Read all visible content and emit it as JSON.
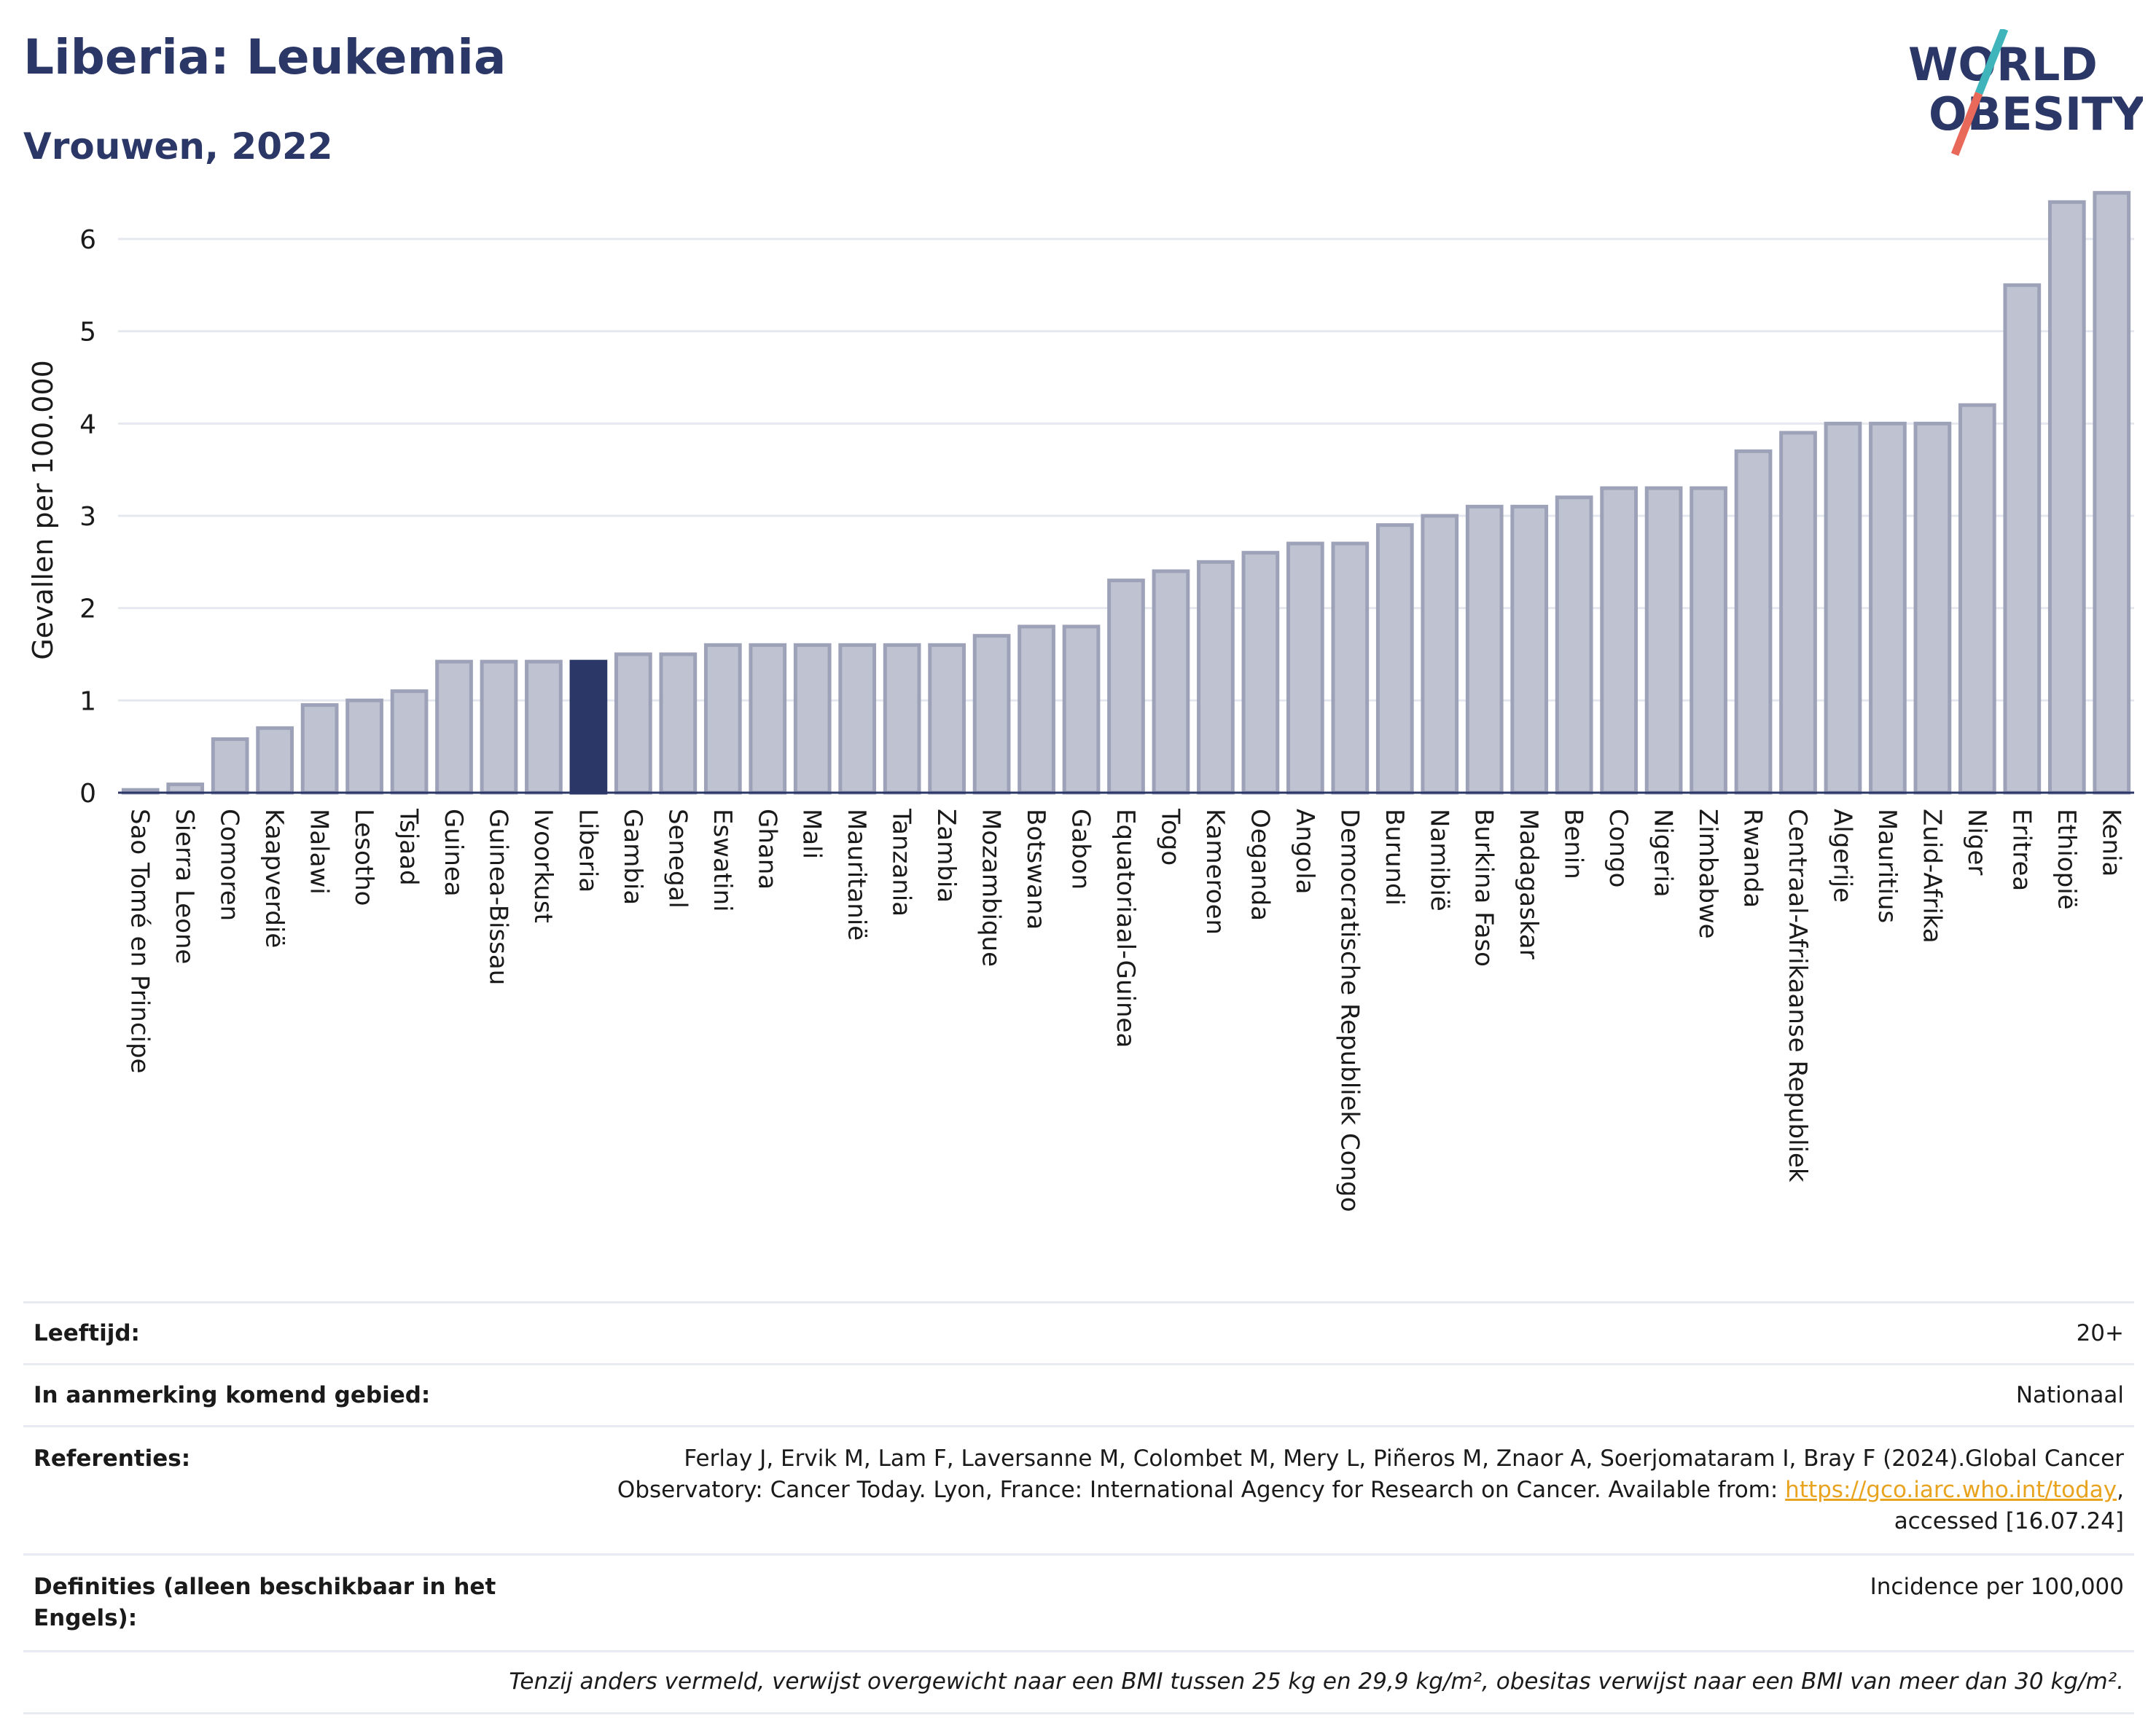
{
  "header": {
    "title": "Liberia: Leukemia",
    "subtitle": "Vrouwen, 2022",
    "logo_text_top": "WORLD",
    "logo_text_bottom": "OBESITY"
  },
  "colors": {
    "bar_fill": "#bfc3d1",
    "bar_stroke": "#9da2b8",
    "highlight_fill": "#2b3766",
    "title": "#2b3766",
    "logo_teal": "#3fb5bb",
    "logo_red": "#e8685a",
    "link": "#e8a31f"
  },
  "chart_data": {
    "type": "bar",
    "ylabel": "Gevallen per 100.000",
    "xlabel": "",
    "ylim": [
      0,
      6.6
    ],
    "yticks": [
      0,
      1,
      2,
      3,
      4,
      5,
      6
    ],
    "grid": true,
    "highlight": "Liberia",
    "categories": [
      "Sao Tomé en Principe",
      "Sierra Leone",
      "Comoren",
      "Kaapverdië",
      "Malawi",
      "Lesotho",
      "Tsjaad",
      "Guinea",
      "Guinea-Bissau",
      "Ivoorkust",
      "Liberia",
      "Gambia",
      "Senegal",
      "Eswatini",
      "Ghana",
      "Mali",
      "Mauritanië",
      "Tanzania",
      "Zambia",
      "Mozambique",
      "Botswana",
      "Gabon",
      "Equatoriaal-Guinea",
      "Togo",
      "Kameroen",
      "Oeganda",
      "Angola",
      "Democratische Republiek Congo",
      "Burundi",
      "Namibië",
      "Burkina Faso",
      "Madagaskar",
      "Benin",
      "Congo",
      "Nigeria",
      "Zimbabwe",
      "Rwanda",
      "Centraal-Afrikaanse Republiek",
      "Algerije",
      "Mauritius",
      "Zuid-Afrika",
      "Niger",
      "Eritrea",
      "Ethiopië",
      "Kenia"
    ],
    "values": [
      0.03,
      0.09,
      0.58,
      0.7,
      0.95,
      1.0,
      1.1,
      1.42,
      1.42,
      1.42,
      1.42,
      1.5,
      1.5,
      1.6,
      1.6,
      1.6,
      1.6,
      1.6,
      1.6,
      1.7,
      1.8,
      1.8,
      2.3,
      2.4,
      2.5,
      2.6,
      2.7,
      2.7,
      2.9,
      3.0,
      3.1,
      3.1,
      3.2,
      3.3,
      3.3,
      3.3,
      3.7,
      3.9,
      4.0,
      4.0,
      4.0,
      4.2,
      5.5,
      6.4,
      6.5
    ]
  },
  "meta": {
    "age_label": "Leeftijd:",
    "age_value": "20+",
    "area_label": "In aanmerking komend gebied:",
    "area_value": "Nationaal",
    "ref_label": "Referenties:",
    "ref_text_1": "Ferlay J, Ervik M, Lam F, Laversanne M, Colombet M, Mery L, Piñeros M, Znaor A, Soerjomataram I, Bray F (2024).Global Cancer",
    "ref_text_2": "Observatory: Cancer Today. Lyon, France: International Agency for Research on Cancer. Available from: ",
    "ref_link": "https://gco.iarc.who.int/today",
    "ref_text_3": ",",
    "ref_text_4": "accessed [16.07.24]",
    "def_label": "Definities (alleen beschikbaar in het Engels):",
    "def_value": "Incidence per 100,000",
    "note": "Tenzij anders vermeld, verwijst overgewicht naar een BMI tussen 25 kg en 29,9 kg/m², obesitas verwijst naar een BMI van meer dan 30 kg/m²."
  }
}
